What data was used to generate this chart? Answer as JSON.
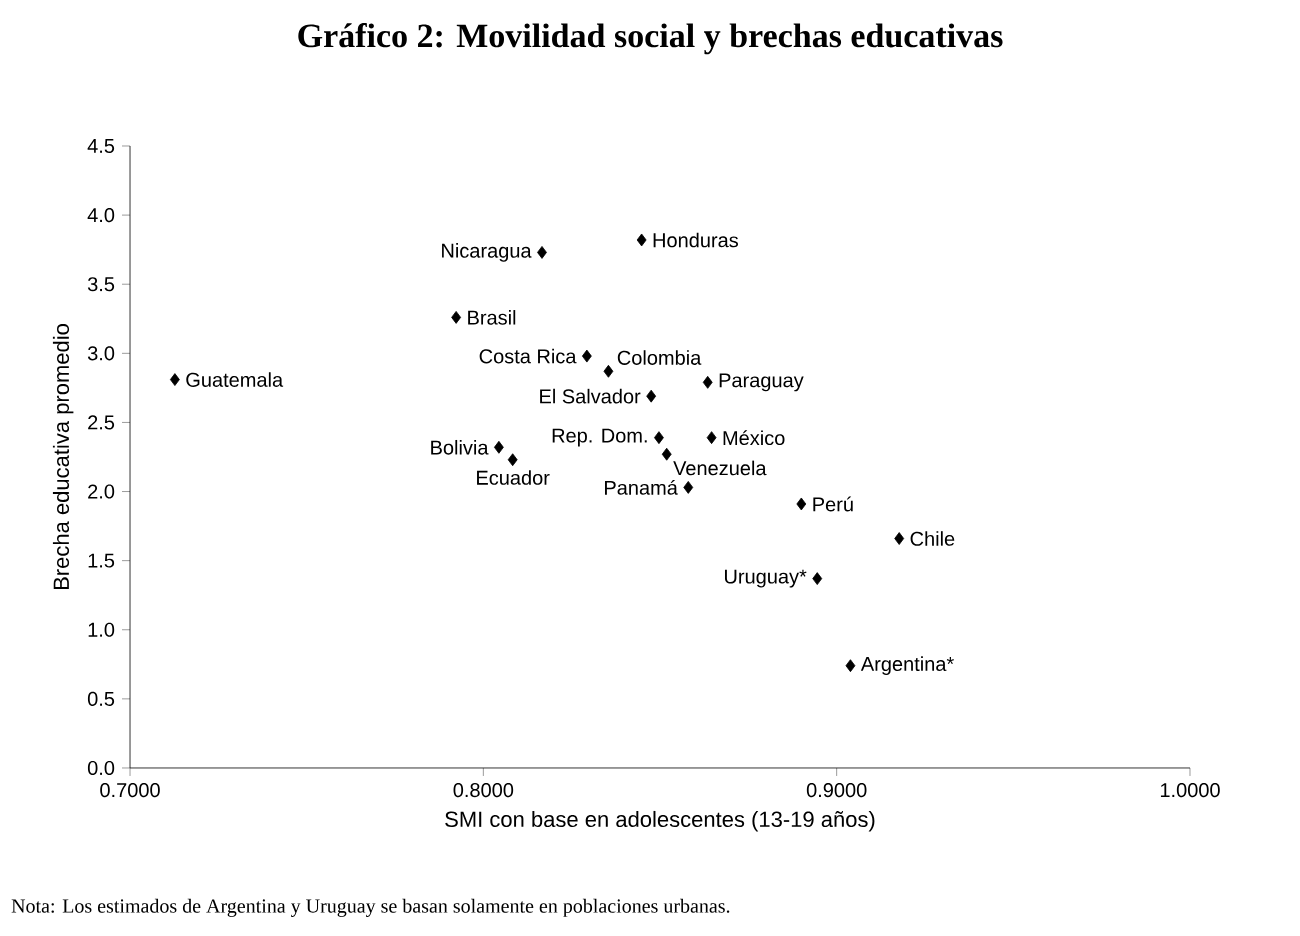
{
  "chart_data": {
    "type": "scatter",
    "title": "Gráfico 2: Movilidad social y brechas educativas",
    "xlabel": "SMI con base en adolescentes (13-19 años)",
    "ylabel": "Brecha educativa promedio",
    "marker": "diamond",
    "grid": false,
    "series": [
      {
        "color": "#000000",
        "x": [
          0.7127,
          0.8166,
          0.8448,
          0.7923,
          0.8293,
          0.8354,
          0.8475,
          0.8635,
          0.8044,
          0.8083,
          0.8497,
          0.8519,
          0.8646,
          0.858,
          0.89,
          0.9177,
          0.8945,
          0.9039
        ],
        "values": [
          2.81,
          3.73,
          3.82,
          3.26,
          2.98,
          2.87,
          2.69,
          2.79,
          2.32,
          2.23,
          2.39,
          2.27,
          2.39,
          2.03,
          1.91,
          1.66,
          1.37,
          0.74
        ]
      }
    ],
    "xlim": [
      0.7,
      1.0
    ],
    "ylim": [
      0,
      4.5
    ],
    "xticks": [
      {
        "value": 0.7,
        "label": "0.7000"
      },
      {
        "value": 0.8,
        "label": "0.8000"
      },
      {
        "value": 0.9,
        "label": "0.9000"
      },
      {
        "value": 1.0,
        "label": "1.0000"
      }
    ],
    "yticks": [
      {
        "value": 0,
        "label": "0.0"
      },
      {
        "value": 0.5,
        "label": "0.5"
      },
      {
        "value": 1,
        "label": "1.0"
      },
      {
        "value": 1.5,
        "label": "1.5"
      },
      {
        "value": 2,
        "label": "2.0"
      },
      {
        "value": 2.5,
        "label": "2.5"
      },
      {
        "value": 3,
        "label": "3.0"
      },
      {
        "value": 3.5,
        "label": "3.5"
      },
      {
        "value": 4,
        "label": "4.0"
      },
      {
        "value": 4.5,
        "label": "4.5"
      }
    ],
    "annotations": [
      {
        "text": "Guatemala",
        "x": 0.7127,
        "y": 2.81
      },
      {
        "text": "Nicaragua",
        "x": 0.8166,
        "y": 3.73
      },
      {
        "text": "Honduras",
        "x": 0.8448,
        "y": 3.82
      },
      {
        "text": "Brasil",
        "x": 0.7923,
        "y": 3.26
      },
      {
        "text": "Costa Rica",
        "x": 0.8293,
        "y": 2.98
      },
      {
        "text": "Colombia",
        "x": 0.8354,
        "y": 2.87
      },
      {
        "text": "El Salvador",
        "x": 0.8475,
        "y": 2.69
      },
      {
        "text": "Paraguay",
        "x": 0.8635,
        "y": 2.79
      },
      {
        "text": "Bolivia",
        "x": 0.8044,
        "y": 2.32
      },
      {
        "text": "Ecuador",
        "x": 0.8083,
        "y": 2.23
      },
      {
        "text": "Rep. Dom.",
        "x": 0.8497,
        "y": 2.39
      },
      {
        "text": "Venezuela",
        "x": 0.8519,
        "y": 2.27
      },
      {
        "text": "México",
        "x": 0.8646,
        "y": 2.39
      },
      {
        "text": "Panamá",
        "x": 0.858,
        "y": 2.03
      },
      {
        "text": "Perú",
        "x": 0.89,
        "y": 1.91
      },
      {
        "text": "Chile",
        "x": 0.9177,
        "y": 1.66
      },
      {
        "text": "Uruguay*",
        "x": 0.8945,
        "y": 1.37
      },
      {
        "text": "Argentina*",
        "x": 0.9039,
        "y": 0.74
      },
      "Nota: Los estimados de Argentina y Uruguay se basan solamente en poblaciones urbanas."
    ]
  }
}
